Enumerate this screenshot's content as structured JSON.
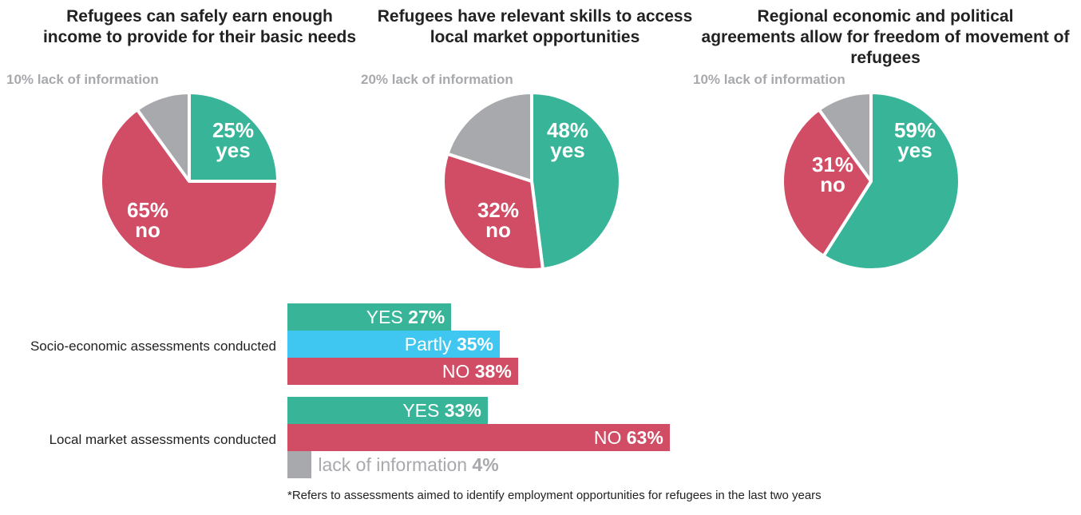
{
  "colors": {
    "yes": "#38b599",
    "no": "#d04d65",
    "partly": "#3fc7f1",
    "nodata": "#a8a9ad"
  },
  "pies": [
    {
      "title_lines": [
        "Refugees can safely earn enough",
        "income to provide for their basic needs"
      ],
      "nodata_note": "10% lack of information",
      "slices": [
        {
          "key": "yes",
          "value": 25,
          "label_pct": "25%",
          "label_word": "yes"
        },
        {
          "key": "no",
          "value": 65,
          "label_pct": "65%",
          "label_word": "no"
        },
        {
          "key": "nodata",
          "value": 10,
          "label_pct": "",
          "label_word": ""
        }
      ]
    },
    {
      "title_lines": [
        "Refugees have relevant skills to access",
        "local market opportunities"
      ],
      "nodata_note": "20% lack of information",
      "slices": [
        {
          "key": "yes",
          "value": 48,
          "label_pct": "48%",
          "label_word": "yes"
        },
        {
          "key": "no",
          "value": 32,
          "label_pct": "32%",
          "label_word": "no"
        },
        {
          "key": "nodata",
          "value": 20,
          "label_pct": "",
          "label_word": ""
        }
      ]
    },
    {
      "title_lines": [
        "Regional economic and political",
        "agreements allow for freedom of movement of",
        "refugees"
      ],
      "nodata_note": "10% lack of information",
      "slices": [
        {
          "key": "yes",
          "value": 59,
          "label_pct": "59%",
          "label_word": "yes"
        },
        {
          "key": "no",
          "value": 31,
          "label_pct": "31%",
          "label_word": "no"
        },
        {
          "key": "nodata",
          "value": 10,
          "label_pct": "",
          "label_word": ""
        }
      ]
    }
  ],
  "bar_groups": [
    {
      "label": "Socio-economic assessments conducted",
      "bars": [
        {
          "key": "yes",
          "label": "YES",
          "value": 27,
          "pct_text": "27%"
        },
        {
          "key": "partly",
          "label": "Partly",
          "value": 35,
          "pct_text": "35%"
        },
        {
          "key": "no",
          "label": "NO",
          "value": 38,
          "pct_text": "38%"
        }
      ]
    },
    {
      "label": "Local market assessments conducted",
      "bars": [
        {
          "key": "yes",
          "label": "YES",
          "value": 33,
          "pct_text": "33%"
        },
        {
          "key": "no",
          "label": "NO",
          "value": 63,
          "pct_text": "63%"
        },
        {
          "key": "nodata",
          "label": "lack of information",
          "value": 4,
          "pct_text": "4%"
        }
      ]
    }
  ],
  "footnote": "*Refers to assessments aimed to identify employment opportunities for refugees in the last two years",
  "chart_data": [
    {
      "type": "pie",
      "title": "Refugees can safely earn enough income to provide for their basic needs",
      "labels": [
        "yes",
        "no",
        "lack of information"
      ],
      "values": [
        25,
        65,
        10
      ]
    },
    {
      "type": "pie",
      "title": "Refugees have relevant skills to access local market opportunities",
      "labels": [
        "yes",
        "no",
        "lack of information"
      ],
      "values": [
        48,
        32,
        20
      ]
    },
    {
      "type": "pie",
      "title": "Regional economic and political agreements allow for freedom of movement of refugees",
      "labels": [
        "yes",
        "no",
        "lack of information"
      ],
      "values": [
        59,
        31,
        10
      ]
    },
    {
      "type": "bar",
      "orientation": "horizontal",
      "title": "Socio-economic assessments conducted",
      "categories": [
        "YES",
        "Partly",
        "NO"
      ],
      "values": [
        27,
        35,
        38
      ]
    },
    {
      "type": "bar",
      "orientation": "horizontal",
      "title": "Local market assessments conducted",
      "categories": [
        "YES",
        "NO",
        "lack of information"
      ],
      "values": [
        33,
        63,
        4
      ]
    }
  ]
}
